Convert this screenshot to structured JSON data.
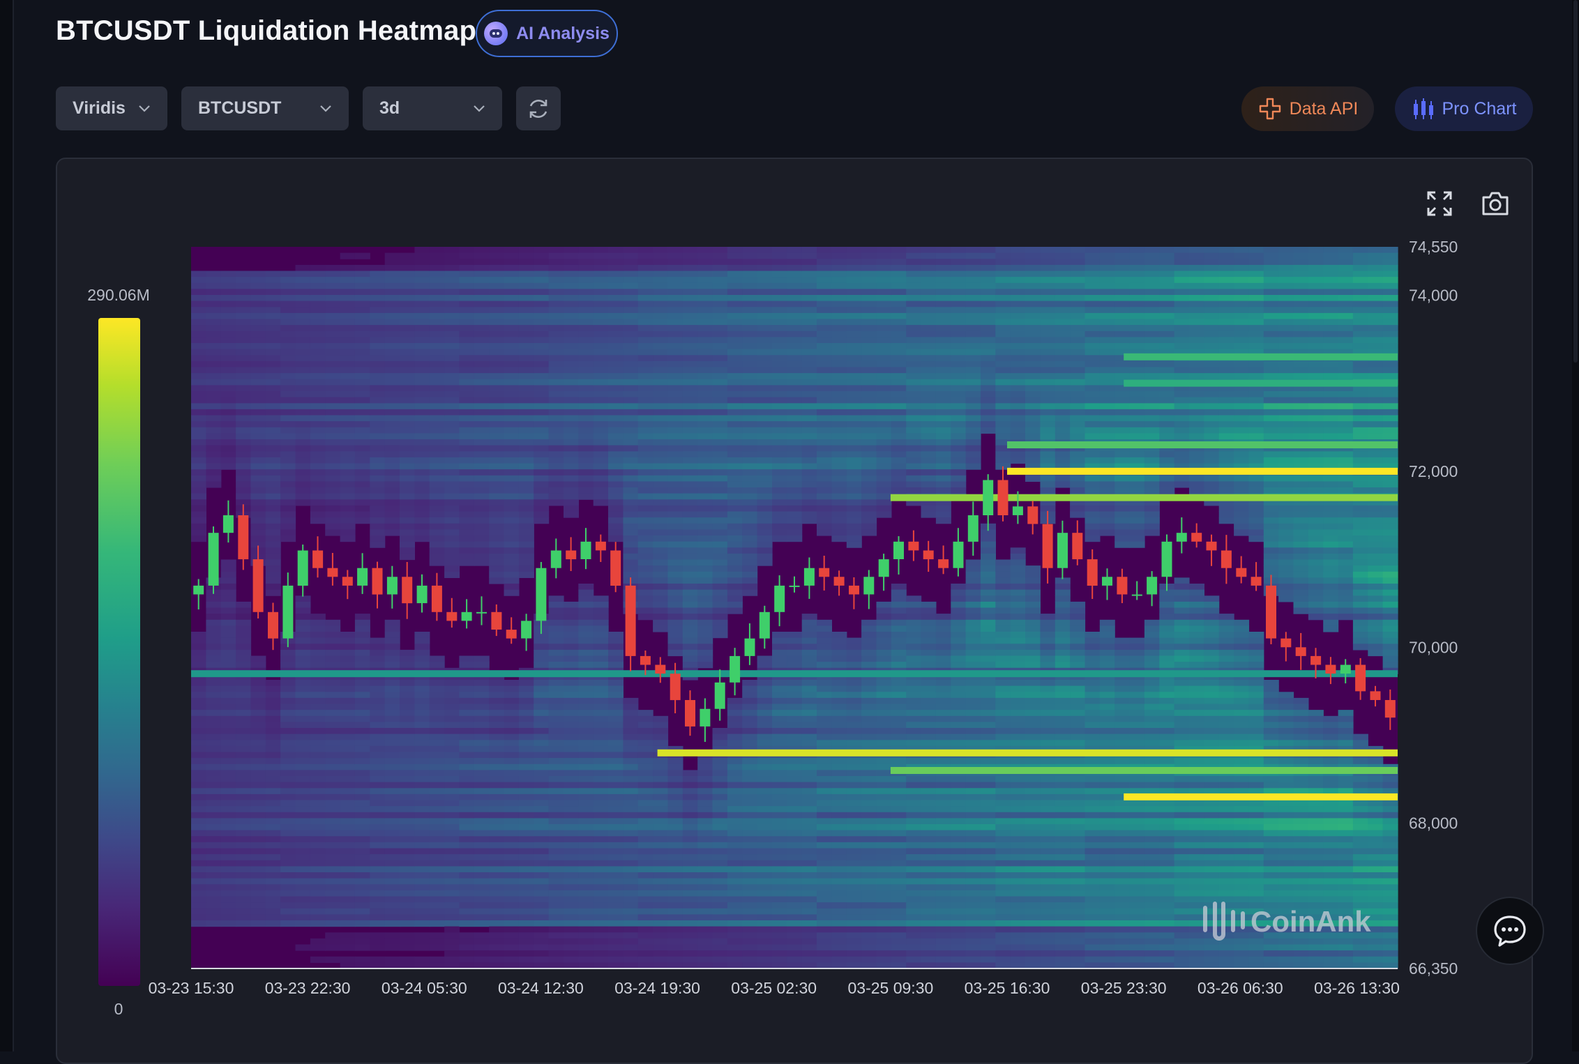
{
  "header": {
    "title": "BTCUSDT Liquidation Heatmap",
    "ai_button": "AI Analysis"
  },
  "toolbar": {
    "colormap": "Viridis",
    "symbol": "BTCUSDT",
    "timeframe": "3d",
    "data_api": "Data API",
    "pro_chart": "Pro Chart",
    "icons": [
      "refresh-icon",
      "data-api-icon",
      "candlestick-icon",
      "fullscreen-icon",
      "camera-icon",
      "chat-icon",
      "chevron-down-icon"
    ]
  },
  "colors": {
    "background": "#10131c",
    "panel": "#1b1d26",
    "accent": "#3e6fd6",
    "data_api": "#f08858",
    "pro_chart": "#7d93ff",
    "candle_up": "#3fcf6a",
    "candle_down": "#e8453c"
  },
  "legend": {
    "max": "290.06M",
    "min": "0"
  },
  "watermark": "CoinAnk",
  "chart_data": {
    "type": "heatmap",
    "title": "BTCUSDT Liquidation Heatmap",
    "colorscale": "Viridis",
    "color_range": [
      0,
      290060000
    ],
    "x_tick_labels": [
      "03-23 15:30",
      "03-23 22:30",
      "03-24 05:30",
      "03-24 12:30",
      "03-24 19:30",
      "03-25 02:30",
      "03-25 09:30",
      "03-25 16:30",
      "03-25 23:30",
      "03-26 06:30",
      "03-26 13:30"
    ],
    "y_tick_labels": [
      "74,550",
      "74,000",
      "72,000",
      "70,000",
      "68,000",
      "66,350"
    ],
    "y_ticks": [
      74550,
      74000,
      72000,
      70000,
      68000,
      66350
    ],
    "ylim": [
      66350,
      74550
    ],
    "price_candles": {
      "interval_hours": 1,
      "start": "03-23 15:30",
      "close": [
        70700,
        71300,
        71500,
        71000,
        70400,
        70100,
        70700,
        71100,
        70900,
        70800,
        70700,
        70900,
        70600,
        70800,
        70500,
        70700,
        70400,
        70300,
        70400,
        70400,
        70200,
        70100,
        70300,
        70900,
        71100,
        71000,
        71200,
        71100,
        70700,
        69900,
        69800,
        69700,
        69400,
        69100,
        69300,
        69600,
        69900,
        70100,
        70400,
        70700,
        70700,
        70900,
        70800,
        70700,
        70600,
        70800,
        71000,
        71200,
        71100,
        71000,
        70900,
        71200,
        71500,
        71900,
        71500,
        71600,
        71400,
        70900,
        71300,
        71000,
        70700,
        70800,
        70600,
        70600,
        70800,
        71200,
        71300,
        71200,
        71100,
        70900,
        70800,
        70700,
        70100,
        70000,
        69900,
        69800,
        69700,
        69800,
        69500,
        69400,
        69200
      ]
    },
    "liquidation_bands": [
      {
        "price": 72000,
        "from": "03-25 16:30",
        "intensity": 1.0
      },
      {
        "price": 71700,
        "from": "03-25 09:30",
        "intensity": 0.9
      },
      {
        "price": 73300,
        "from": "03-25 23:30",
        "intensity": 0.75
      },
      {
        "price": 73000,
        "from": "03-25 23:30",
        "intensity": 0.7
      },
      {
        "price": 72300,
        "from": "03-25 16:30",
        "intensity": 0.8
      },
      {
        "price": 68800,
        "from": "03-24 19:30",
        "intensity": 0.97
      },
      {
        "price": 68600,
        "from": "03-25 09:30",
        "intensity": 0.85
      },
      {
        "price": 68300,
        "from": "03-25 23:30",
        "intensity": 1.0
      },
      {
        "price": 69700,
        "from": "03-23 15:30",
        "intensity": 0.6
      }
    ]
  }
}
